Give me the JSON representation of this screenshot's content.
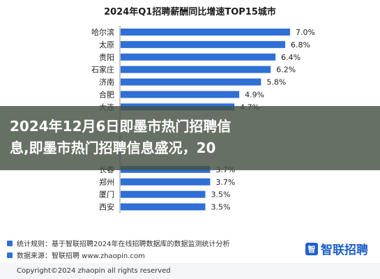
{
  "chart_data": {
    "type": "bar",
    "orientation": "horizontal",
    "title": "2024年Q1招聘薪酬同比增速TOP15城市",
    "xlabel": "",
    "ylabel": "",
    "xlim": [
      0,
      8
    ],
    "grid": false,
    "legend": "none",
    "bar_color": "#2f6fd6",
    "categories": [
      "哈尔滨",
      "太原",
      "贵阳",
      "石家庄",
      "济南",
      "合肥",
      "大连",
      "",
      "",
      "",
      "",
      "长春",
      "郑州",
      "厦门",
      "西安"
    ],
    "values": [
      7.0,
      6.8,
      6.4,
      6.2,
      5.8,
      4.9,
      4.7,
      null,
      null,
      null,
      null,
      3.7,
      3.7,
      3.5,
      3.5
    ],
    "value_labels": [
      "7.0%",
      "6.8%",
      "6.4%",
      "6.2%",
      "5.8%",
      "4.9%",
      "4.7%",
      "",
      "",
      "",
      "",
      "3.7%",
      "3.7%",
      "3.5%",
      "3.5%"
    ]
  },
  "overlay": {
    "line1": "2024年12月6日即墨市热门招聘信",
    "line2": "息,即墨市热门招聘信息盛况，20"
  },
  "notes": {
    "rule": "统计规则：基于智联招聘2024年在线招聘数据库的数据监测统计分析",
    "source": "数据来源：智联招聘 www.zhaopin.com",
    "accent_color": "#2f6fd6"
  },
  "brand": {
    "name": "智联招聘",
    "mark": "智"
  },
  "copyright": "Copyright©2024 zhaopin all rights reserved"
}
